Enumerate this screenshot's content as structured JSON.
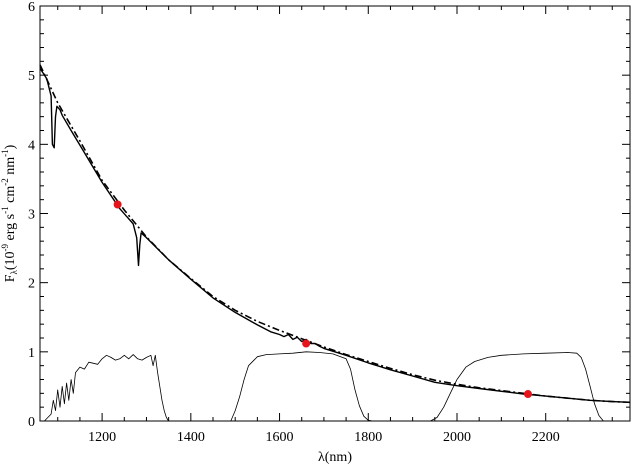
{
  "chart_data": {
    "type": "line",
    "title": "",
    "xlabel": "λ(nm)",
    "ylabel_parts": {
      "f": "F",
      "sub": "λ",
      "base": "(10",
      "exp1": "-9",
      "unit_erg": " erg s",
      "exp2": "-1",
      "unit_cm": " cm",
      "exp3": "-2",
      "unit_nm": " nm",
      "exp4": "-1",
      "close": ")"
    },
    "xlim": [
      1060,
      2390
    ],
    "ylim": [
      0,
      6
    ],
    "xticks": [
      1200,
      1400,
      1600,
      1800,
      2000,
      2200
    ],
    "yticks": [
      0,
      1,
      2,
      3,
      4,
      5,
      6
    ],
    "grid": false,
    "series": [
      {
        "style": "solid",
        "x": [
          1060,
          1075,
          1085,
          1088,
          1092,
          1095,
          1098,
          1105,
          1110,
          1130,
          1160,
          1200,
          1240,
          1270,
          1278,
          1282,
          1285,
          1288,
          1300,
          1350,
          1400,
          1450,
          1500,
          1550,
          1580,
          1600,
          1610,
          1620,
          1630,
          1640,
          1650,
          1660,
          1670,
          1680,
          1690,
          1700,
          1750,
          1800,
          1850,
          1900,
          1950,
          2000,
          2050,
          2100,
          2150,
          2200,
          2250,
          2300,
          2350,
          2390
        ],
        "y": [
          5.1,
          4.95,
          4.7,
          4.0,
          3.95,
          4.4,
          4.55,
          4.5,
          4.42,
          4.2,
          3.88,
          3.45,
          3.07,
          2.85,
          2.65,
          2.25,
          2.55,
          2.72,
          2.65,
          2.33,
          2.05,
          1.78,
          1.57,
          1.39,
          1.29,
          1.25,
          1.22,
          1.25,
          1.18,
          1.21,
          1.15,
          1.18,
          1.12,
          1.12,
          1.08,
          1.05,
          0.95,
          0.84,
          0.74,
          0.65,
          0.56,
          0.51,
          0.47,
          0.43,
          0.39,
          0.36,
          0.33,
          0.3,
          0.28,
          0.27
        ]
      },
      {
        "style": "dash-dot",
        "x": [
          1060,
          1100,
          1150,
          1200,
          1250,
          1300,
          1350,
          1400,
          1450,
          1500,
          1550,
          1600,
          1650,
          1700,
          1750,
          1800,
          1850,
          1900,
          1950,
          2000,
          2050,
          2100,
          2150,
          2200,
          2250,
          2300,
          2350,
          2390
        ],
        "y": [
          5.15,
          4.6,
          4.05,
          3.48,
          3.05,
          2.66,
          2.33,
          2.06,
          1.8,
          1.6,
          1.44,
          1.31,
          1.19,
          1.07,
          0.96,
          0.86,
          0.76,
          0.67,
          0.59,
          0.53,
          0.48,
          0.44,
          0.4,
          0.36,
          0.33,
          0.3,
          0.28,
          0.27
        ]
      },
      {
        "style": "thin",
        "x": [
          1060,
          1070,
          1085,
          1090,
          1095,
          1100,
          1105,
          1110,
          1115,
          1120,
          1125,
          1130,
          1135,
          1140,
          1150,
          1160,
          1170,
          1190,
          1200,
          1210,
          1220,
          1230,
          1240,
          1250,
          1260,
          1270,
          1280,
          1290,
          1300,
          1310,
          1315,
          1320,
          1325,
          1330,
          1335,
          1340,
          1345,
          1350
        ],
        "y": [
          0.0,
          0.0,
          0.1,
          0.3,
          0.15,
          0.45,
          0.2,
          0.5,
          0.25,
          0.55,
          0.3,
          0.6,
          0.4,
          0.7,
          0.78,
          0.75,
          0.85,
          0.82,
          0.9,
          0.95,
          0.92,
          0.88,
          0.9,
          0.95,
          0.9,
          0.96,
          0.9,
          0.88,
          0.92,
          0.95,
          0.8,
          0.95,
          0.7,
          0.5,
          0.3,
          0.15,
          0.05,
          0.0
        ]
      },
      {
        "style": "thin",
        "x": [
          1490,
          1500,
          1510,
          1520,
          1530,
          1550,
          1570,
          1600,
          1630,
          1660,
          1690,
          1720,
          1750,
          1760,
          1770,
          1780,
          1790,
          1800,
          1810
        ],
        "y": [
          0.0,
          0.15,
          0.35,
          0.6,
          0.8,
          0.93,
          0.96,
          0.97,
          0.98,
          1.0,
          0.99,
          0.97,
          0.9,
          0.75,
          0.45,
          0.22,
          0.07,
          0.01,
          0.0
        ]
      },
      {
        "style": "thin",
        "x": [
          1940,
          1955,
          1970,
          1985,
          2000,
          2020,
          2040,
          2070,
          2100,
          2150,
          2200,
          2250,
          2270,
          2280,
          2290,
          2300,
          2310,
          2320,
          2330
        ],
        "y": [
          0.0,
          0.05,
          0.2,
          0.4,
          0.6,
          0.78,
          0.86,
          0.92,
          0.95,
          0.97,
          0.98,
          0.99,
          0.98,
          0.92,
          0.75,
          0.5,
          0.25,
          0.08,
          0.0
        ]
      }
    ],
    "points": {
      "color": "#e8141b",
      "x": [
        1235,
        1660,
        2160
      ],
      "y": [
        3.13,
        1.12,
        0.39
      ]
    }
  }
}
